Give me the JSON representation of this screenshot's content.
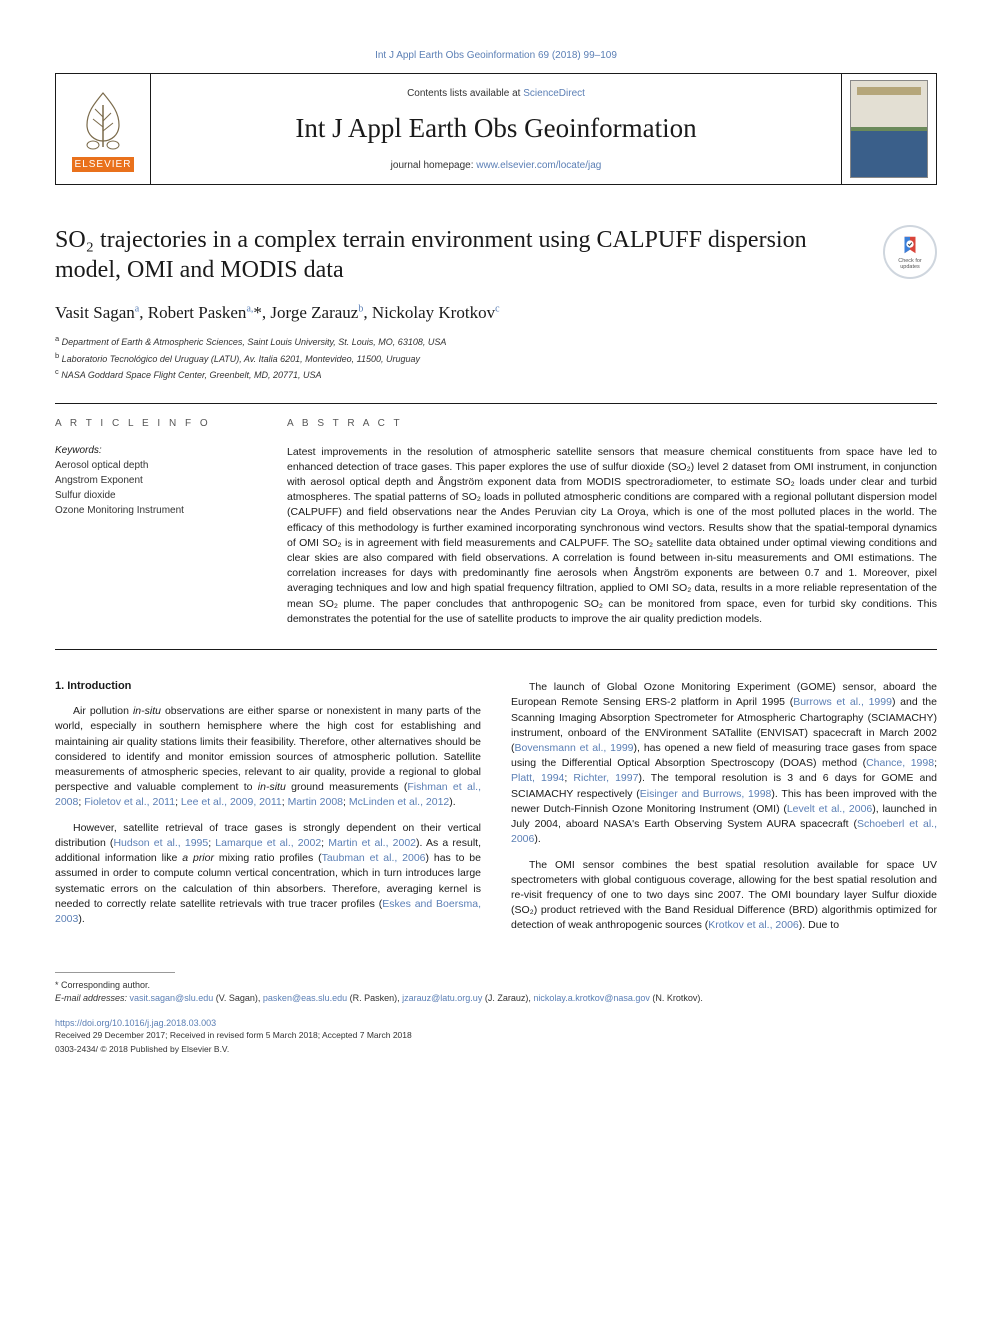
{
  "top_link_text": "Int J Appl Earth Obs Geoinformation 69 (2018) 99–109",
  "banner": {
    "contents_text": "Contents lists available at ",
    "contents_link": "ScienceDirect",
    "journal_name": "Int J Appl Earth Obs Geoinformation",
    "homepage_text": "journal homepage: ",
    "homepage_link": "www.elsevier.com/locate/jag",
    "publisher_logo_label": "ELSEVIER"
  },
  "check_updates_label": "Check for\nupdates",
  "article": {
    "title": "SO₂ trajectories in a complex terrain environment using CALPUFF dispersion model, OMI and MODIS data",
    "authors_html": "Vasit Sagan<sup>a</sup>, Robert Pasken<sup>a,</sup>*, Jorge Zarauz<sup>b</sup>, Nickolay Krotkov<sup>c</sup>",
    "affiliations": [
      {
        "sup": "a",
        "text": "Department of Earth & Atmospheric Sciences, Saint Louis University, St. Louis, MO, 63108, USA"
      },
      {
        "sup": "b",
        "text": "Laboratorio Tecnológico del Uruguay (LATU), Av. Italia 6201, Montevideo, 11500, Uruguay"
      },
      {
        "sup": "c",
        "text": "NASA Goddard Space Flight Center, Greenbelt, MD, 20771, USA"
      }
    ]
  },
  "info": {
    "label": "A R T I C L E   I N F O",
    "keywords_label": "Keywords:",
    "keywords": [
      "Aerosol optical depth",
      "Angstrom Exponent",
      "Sulfur dioxide",
      "Ozone Monitoring Instrument"
    ]
  },
  "abstract": {
    "label": "A B S T R A C T",
    "text": "Latest improvements in the resolution of atmospheric satellite sensors that measure chemical constituents from space have led to enhanced detection of trace gases. This paper explores the use of sulfur dioxide (SO₂) level 2 dataset from OMI instrument, in conjunction with aerosol optical depth and Ångström exponent data from MODIS spectroradiometer, to estimate SO₂ loads under clear and turbid atmospheres. The spatial patterns of SO₂ loads in polluted atmospheric conditions are compared with a regional pollutant dispersion model (CALPUFF) and field observations near the Andes Peruvian city La Oroya, which is one of the most polluted places in the world. The efficacy of this methodology is further examined incorporating synchronous wind vectors. Results show that the spatial-temporal dynamics of OMI SO₂ is in agreement with field measurements and CALPUFF. The SO₂ satellite data obtained under optimal viewing conditions and clear skies are also compared with field observations. A correlation is found between in-situ measurements and OMI estimations. The correlation increases for days with predominantly fine aerosols when Ångström exponents are between 0.7 and 1. Moreover, pixel averaging techniques and low and high spatial frequency filtration, applied to OMI SO₂ data, results in a more reliable representation of the mean SO₂ plume. The paper concludes that anthropogenic SO₂ can be monitored from space, even for turbid sky conditions. This demonstrates the potential for the use of satellite products to improve the air quality prediction models."
  },
  "body": {
    "heading1": "1. Introduction",
    "left": [
      "Air pollution <span class='ital'>in-situ</span> observations are either sparse or nonexistent in many parts of the world, especially in southern hemisphere where the high cost for establishing and maintaining air quality stations limits their feasibility. Therefore, other alternatives should be considered to identify and monitor emission sources of atmospheric pollution. Satellite measurements of atmospheric species, relevant to air quality, provide a regional to global perspective and valuable complement to <span class='ital'>in-situ</span> ground measurements (<span class='cite'>Fishman et al., 2008</span>; <span class='cite'>Fioletov et al., 2011</span>; <span class='cite'>Lee et al., 2009, 2011</span>; <span class='cite'>Martin 2008</span>; <span class='cite'>McLinden et al., 2012</span>).",
      "However, satellite retrieval of trace gases is strongly dependent on their vertical distribution (<span class='cite'>Hudson et al., 1995</span>; <span class='cite'>Lamarque et al., 2002</span>; <span class='cite'>Martin et al., 2002</span>). As a result, additional information like <span class='ital'>a prior</span> mixing ratio profiles (<span class='cite'>Taubman et al., 2006</span>) has to be assumed in order to compute column vertical concentration, which in turn introduces large systematic errors on the calculation of thin absorbers. Therefore, averaging kernel is needed to correctly relate satellite retrievals with true tracer profiles (<span class='cite'>Eskes and Boersma, 2003</span>)."
    ],
    "right": [
      "The launch of Global Ozone Monitoring Experiment (GOME) sensor, aboard the European Remote Sensing ERS-2 platform in April 1995 (<span class='cite'>Burrows et al., 1999</span>) and the Scanning Imaging Absorption Spectrometer for Atmospheric Chartography (SCIAMACHY) instrument, onboard of the ENVironment SATallite (ENVISAT) spacecraft in March 2002 (<span class='cite'>Bovensmann et al., 1999</span>), has opened a new field of measuring trace gases from space using the Differential Optical Absorption Spectroscopy (DOAS) method (<span class='cite'>Chance, 1998</span>; <span class='cite'>Platt, 1994</span>; <span class='cite'>Richter, 1997</span>). The temporal resolution is 3 and 6 days for GOME and SCIAMACHY respectively (<span class='cite'>Eisinger and Burrows, 1998</span>). This has been improved with the newer Dutch-Finnish Ozone Monitoring Instrument (OMI) (<span class='cite'>Levelt et al., 2006</span>), launched in July 2004, aboard NASA's Earth Observing System AURA spacecraft (<span class='cite'>Schoeberl et al., 2006</span>).",
      "The OMI sensor combines the best spatial resolution available for space UV spectrometers with global contiguous coverage, allowing for the best spatial resolution and re-visit frequency of one to two days sinc 2007. The OMI boundary layer Sulfur dioxide (SO₂) product retrieved with the Band Residual Difference (BRD) algorithmis optimized for detection of weak anthropogenic sources (<span class='cite'>Krotkov et al., 2006</span>). Due to"
    ]
  },
  "footnotes": {
    "corresponding": "* Corresponding author.",
    "emails_label": "E-mail addresses: ",
    "emails": [
      {
        "addr": "vasit.sagan@slu.edu",
        "who": "(V. Sagan)"
      },
      {
        "addr": "pasken@eas.slu.edu",
        "who": "(R. Pasken)"
      },
      {
        "addr": "jzarauz@latu.org.uy",
        "who": "(J. Zarauz)"
      },
      {
        "addr": "nickolay.a.krotkov@nasa.gov",
        "who": "(N. Krotkov)."
      }
    ],
    "doi": "https://doi.org/10.1016/j.jag.2018.03.003",
    "received": "Received 29 December 2017; Received in revised form 5 March 2018; Accepted 7 March 2018",
    "copyright": "0303-2434/ © 2018 Published by Elsevier B.V."
  },
  "colors": {
    "link": "#5b7fb5",
    "text": "#1a1a1a",
    "accent_orange": "#e9711c"
  }
}
